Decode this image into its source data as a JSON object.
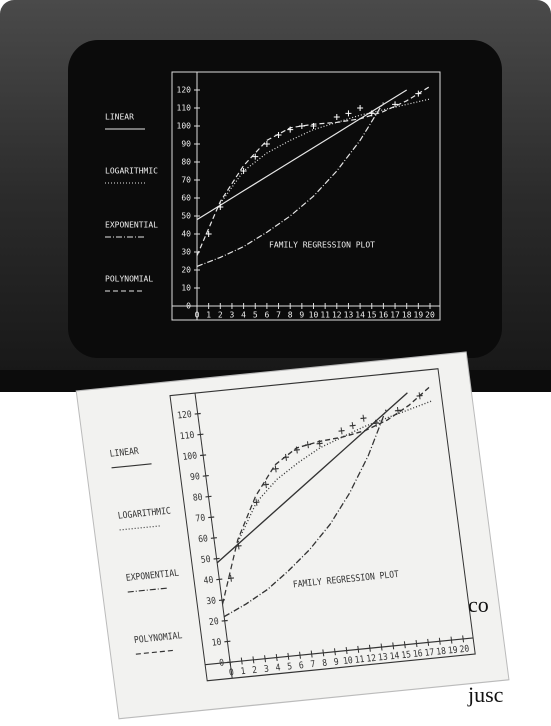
{
  "chart_data": {
    "type": "line",
    "title": "FAMILY REGRESSION PLOT",
    "x": [
      0,
      2,
      4,
      6,
      8,
      10,
      12,
      14,
      16,
      18,
      20
    ],
    "series": [
      {
        "name": "LINEAR",
        "color": "#e6e6e6",
        "line_style": "solid",
        "values": [
          48,
          56,
          64,
          72,
          80,
          88,
          96,
          104,
          112,
          120,
          null
        ]
      },
      {
        "name": "LOGARITHMIC",
        "color": "#e6e6e6",
        "line_style": "dotted",
        "values": [
          null,
          57,
          75,
          85,
          92,
          98,
          102,
          106,
          109,
          112,
          115
        ]
      },
      {
        "name": "EXPONENTIAL",
        "color": "#e6e6e6",
        "line_style": "dashdot",
        "values": [
          22,
          27,
          33,
          41,
          50,
          61,
          75,
          92,
          113,
          null,
          null
        ]
      },
      {
        "name": "POLYNOMIAL",
        "color": "#e6e6e6",
        "line_style": "dashed",
        "values": [
          28,
          58,
          78,
          92,
          99,
          101,
          102,
          104,
          108,
          114,
          122
        ]
      }
    ],
    "points": {
      "color": "#ffffff",
      "marker": "+",
      "x": [
        1,
        2,
        4,
        5,
        6,
        7,
        8,
        9,
        10,
        12,
        13,
        14,
        15,
        17,
        19
      ],
      "values": [
        40,
        55,
        75,
        83,
        90,
        95,
        98,
        100,
        100,
        105,
        107,
        110,
        107,
        112,
        118
      ]
    },
    "xlim": [
      0,
      20
    ],
    "ylim": [
      0,
      125
    ],
    "xticks": [
      0,
      1,
      2,
      3,
      4,
      5,
      6,
      7,
      8,
      9,
      10,
      11,
      12,
      13,
      14,
      15,
      16,
      17,
      18,
      19,
      20
    ],
    "yticks": [
      0,
      10,
      20,
      30,
      40,
      50,
      60,
      70,
      80,
      90,
      100,
      110,
      120
    ],
    "grid": false
  },
  "margin_text": [
    "co",
    "jusc"
  ]
}
